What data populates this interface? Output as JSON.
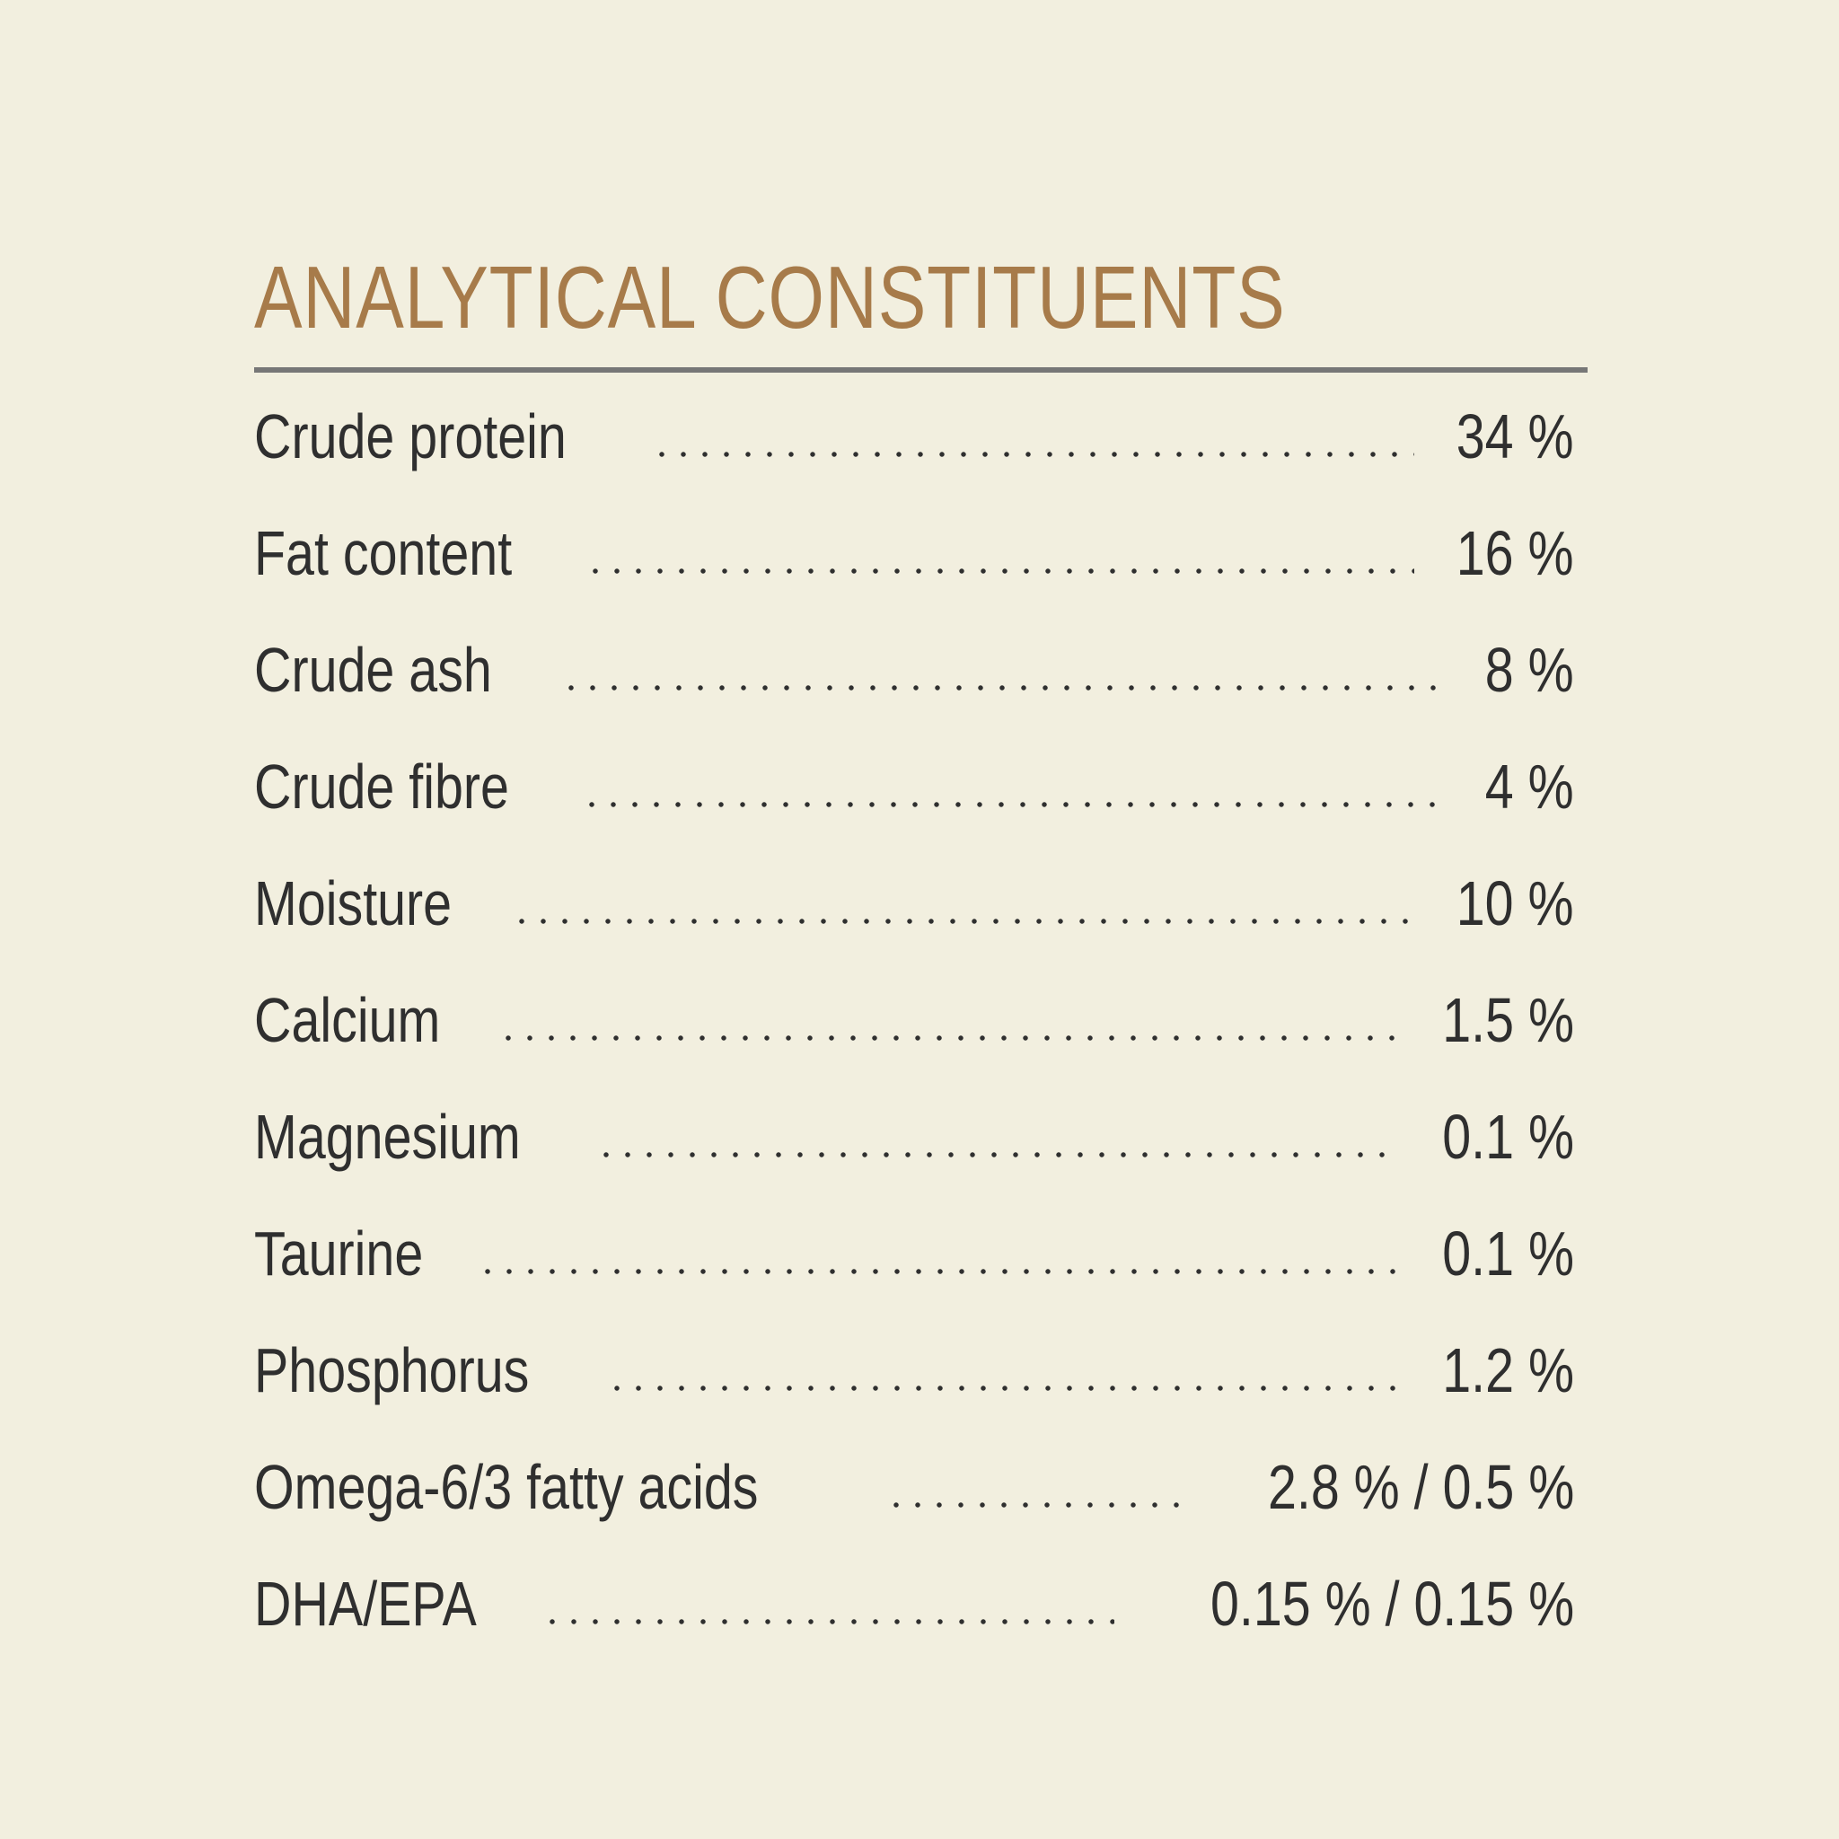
{
  "colors": {
    "background": "#f2efdf",
    "title": "#a77b4a",
    "rule": "#777777",
    "text": "#2f2f2f"
  },
  "title": "ANALYTICAL CONSTITUENTS",
  "constituents": [
    {
      "label": "Crude protein",
      "value": "34 %"
    },
    {
      "label": "Fat content",
      "value": "16 %"
    },
    {
      "label": "Crude ash",
      "value": "8 %"
    },
    {
      "label": "Crude fibre",
      "value": "4 %"
    },
    {
      "label": "Moisture",
      "value": "10 %"
    },
    {
      "label": "Calcium",
      "value": "1.5 %"
    },
    {
      "label": "Magnesium",
      "value": "0.1 %"
    },
    {
      "label": "Taurine",
      "value": "0.1 %"
    },
    {
      "label": "Phosphorus",
      "value": "1.2 %"
    },
    {
      "label": "Omega-6/3 fatty acids",
      "value": "2.8 % / 0.5 %"
    },
    {
      "label": "DHA/EPA",
      "value": "0.15 % / 0.15 %"
    }
  ]
}
